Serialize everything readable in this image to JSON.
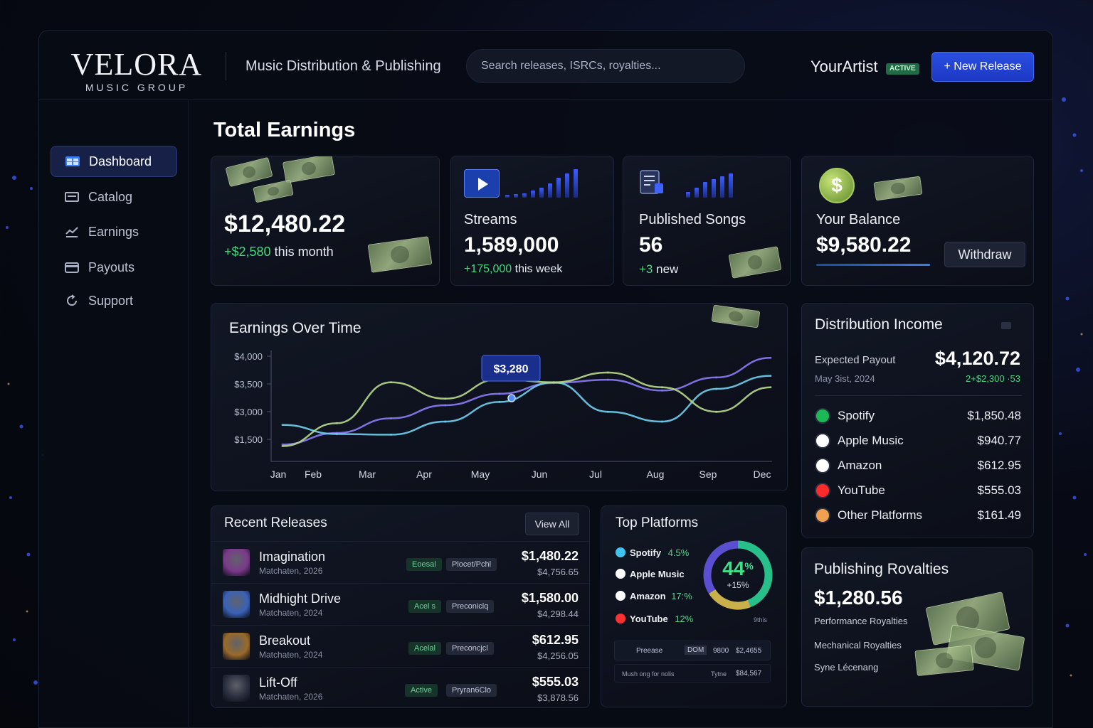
{
  "header": {
    "logo_name": "VELORA",
    "logo_sub": "MUSIC GROUP",
    "title": "Music Distribution & Publishing",
    "search_placeholder": "Search releases, ISRCs, royalties...",
    "user_name": "YourArtist",
    "user_badge": "ACTIVE",
    "new_release_label": "+ New Release"
  },
  "sidebar": {
    "items": [
      {
        "label": "Dashboard",
        "icon": "dashboard-icon",
        "active": true
      },
      {
        "label": "Catalog",
        "icon": "catalog-icon",
        "active": false
      },
      {
        "label": "Earnings",
        "icon": "earnings-icon",
        "active": false
      },
      {
        "label": "Payouts",
        "icon": "payouts-icon",
        "active": false
      },
      {
        "label": "Support",
        "icon": "support-icon",
        "active": false
      }
    ]
  },
  "page_title": "Total Earnings",
  "stats": {
    "total": {
      "value": "$12,480.22",
      "delta": "+$2,580",
      "delta_suffix": "this month"
    },
    "streams": {
      "label": "Streams",
      "value": "1,589,000",
      "delta": "+175,000",
      "delta_suffix": "this week"
    },
    "songs": {
      "label": "Published Songs",
      "value": "56",
      "delta": "+3",
      "delta_suffix": "new"
    },
    "balance": {
      "label": "Your Balance",
      "value": "$9,580.22",
      "button": "Withdraw"
    }
  },
  "chart_data": {
    "type": "line",
    "title": "Earnings Over Time",
    "categories": [
      "Jan",
      "Feb",
      "Mar",
      "Apr",
      "May",
      "Jun",
      "Jul",
      "Aug",
      "Sep",
      "Dec"
    ],
    "y_tick_labels": [
      "$4,000",
      "$3,500",
      "$3,000",
      "$1,500"
    ],
    "tooltip": {
      "label": "$3,280"
    },
    "series": [
      {
        "color": "#8b7cf6",
        "values": [
          1300,
          1650,
          2100,
          2500,
          2850,
          3180,
          3280,
          2950,
          3350,
          3950
        ]
      },
      {
        "color": "#6fd0f0",
        "values": [
          1900,
          1620,
          1600,
          2000,
          2600,
          3200,
          2300,
          2000,
          3000,
          3400
        ]
      },
      {
        "color": "#b7d98a",
        "values": [
          1250,
          1950,
          3200,
          2700,
          3300,
          3200,
          3500,
          3050,
          2300,
          3050
        ]
      }
    ]
  },
  "releases": {
    "title": "Recent Releases",
    "view_all": "View All",
    "items": [
      {
        "title": "Imagination",
        "sub": "Matchaten, 2026",
        "tag1": "Eoesal",
        "tag2": "Plocet/Pchl",
        "amount": "$1,480.22",
        "amount2": "$4,756.65",
        "color": "#7a3a8a"
      },
      {
        "title": "Midhight Drive",
        "sub": "Matchaten, 2024",
        "tag1": "Acel s",
        "tag2": "Preconiclq",
        "amount": "$1,580.00",
        "amount2": "$4,298.44",
        "color": "#3a62b8"
      },
      {
        "title": "Breakout",
        "sub": "Matchaten, 2024",
        "tag1": "Acelal",
        "tag2": "Preconcjcl",
        "amount": "$612.95",
        "amount2": "$4,256.05",
        "color": "#9a6a2a"
      },
      {
        "title": "Lift-Off",
        "sub": "Matchaten, 2026",
        "tag1": "Active",
        "tag2": "Pryran6Clo",
        "amount": "$555.03",
        "amount2": "$3,878.56",
        "color": "#2a2f3f"
      }
    ]
  },
  "top_platforms": {
    "title": "Top Platforms",
    "items": [
      {
        "name": "Spotify",
        "pct": "4.5%",
        "color": "#3fc6f0"
      },
      {
        "name": "Apple Music",
        "pct": "",
        "color": "#ffffff"
      },
      {
        "name": "Amazon",
        "pct": "17:%",
        "color": "#ffffff"
      },
      {
        "name": "YouTube",
        "pct": "12%",
        "color": "#ff3030"
      }
    ],
    "donut_pct": 44,
    "donut_main": "44",
    "donut_suffix": "%",
    "donut_sub": "+15%",
    "this_label": "9this",
    "rows": [
      {
        "c1": "Preease",
        "c2": "DOM",
        "c3": "9800",
        "c4": "$2,4655"
      },
      {
        "c1": "Mush ong for nolis",
        "c2": "Tytne",
        "c3": "",
        "c4": "$84,567"
      }
    ]
  },
  "distribution": {
    "title": "Distribution Income",
    "expected_label": "Expected Payout",
    "expected_date": "May 3ist, 2024",
    "expected_value": "$4,120.72",
    "expected_delta": "2+$2,300 ·53",
    "platforms": [
      {
        "name": "Spotify",
        "amount": "$1,850.48",
        "color": "#1db954"
      },
      {
        "name": "Apple Music",
        "amount": "$940.77",
        "color": "#ffffff"
      },
      {
        "name": "Amazon",
        "amount": "$612.95",
        "color": "#ffffff"
      },
      {
        "name": "YouTube",
        "amount": "$555.03",
        "color": "#ff2a2a"
      },
      {
        "name": "Other Platforms",
        "amount": "$161.49",
        "color": "#f0a050"
      }
    ]
  },
  "publishing": {
    "title": "Publishing Rovalties",
    "value": "$1,280.56",
    "items": [
      "Performance Royalties",
      "Mechanical Royalties",
      "Syne Lécenang"
    ]
  }
}
